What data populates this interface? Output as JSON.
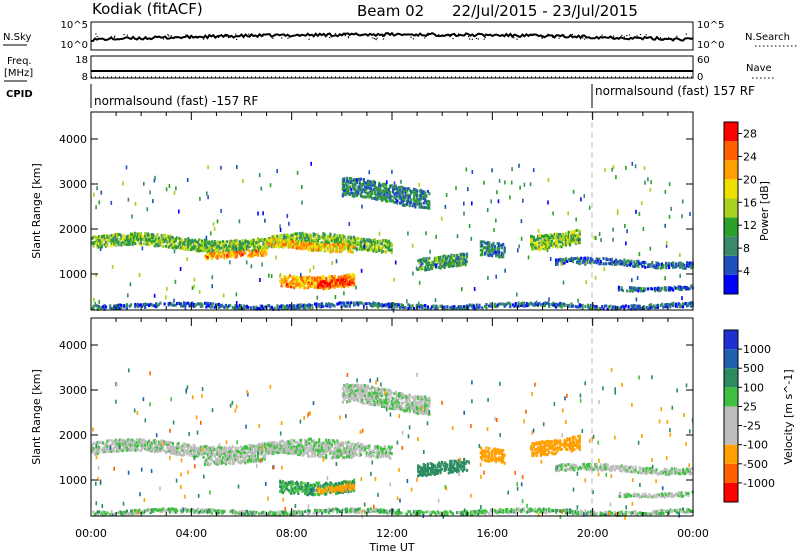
{
  "header": {
    "station": "Kodiak (fitACF)",
    "beam": "Beam 02",
    "date_range": "22/Jul/2015 - 23/Jul/2015"
  },
  "strip_labels": {
    "nsky": "N.Sky",
    "nsearch": "N.Search",
    "freq_top": "Freq.",
    "freq_unit": "[MHz]",
    "nave": "Nave",
    "cpid": "CPID",
    "nsky_ticks": [
      "10^5",
      "10^0"
    ],
    "nsearch_ticks": [
      "10^5",
      "10^0"
    ],
    "freq_ticks": [
      "18",
      "8"
    ],
    "nave_ticks": [
      "60",
      "0"
    ]
  },
  "cpid_segments": [
    {
      "label": "normalsound (fast) -157 RF",
      "start_hour": 0
    },
    {
      "label": "normalsound (fast) 157 RF",
      "start_hour": 20
    }
  ],
  "colors": {
    "power": [
      "#0000ff",
      "#2050c0",
      "#3a8a6a",
      "#2ca02c",
      "#a8d020",
      "#f0e000",
      "#ffa000",
      "#ff6000",
      "#ff0000"
    ],
    "velocity": [
      "#2030d0",
      "#2060b0",
      "#2c8c60",
      "#40c040",
      "#bdbdbd",
      "#bdbdbd",
      "#ffa000",
      "#ff6000",
      "#ff0000"
    ]
  },
  "chart_data": [
    {
      "type": "heatmap",
      "name": "power",
      "ylabel": "Slant Range [km]",
      "xlabel": "Time UT",
      "x_ticks": [
        "00:00",
        "04:00",
        "08:00",
        "12:00",
        "16:00",
        "20:00",
        "00:00"
      ],
      "x_range_hours": [
        0,
        24
      ],
      "ylim": [
        200,
        4600
      ],
      "y_ticks": [
        1000,
        2000,
        3000,
        4000
      ],
      "colorbar": {
        "label": "Power [dB]",
        "ticks": [
          4,
          8,
          12,
          16,
          20,
          24,
          28
        ],
        "range": [
          0,
          30
        ]
      },
      "echo_regions": [
        {
          "t0": 0.0,
          "t1": 12.0,
          "r_center": 1700,
          "r_width": 250,
          "power": 13
        },
        {
          "t0": 4.5,
          "t1": 7.0,
          "r_center": 1450,
          "r_width": 120,
          "power": 22
        },
        {
          "t0": 7.0,
          "t1": 10.5,
          "r_center": 1650,
          "r_width": 200,
          "power": 20
        },
        {
          "t0": 7.5,
          "t1": 10.5,
          "r_center": 900,
          "r_width": 250,
          "power": 22
        },
        {
          "t0": 9.0,
          "t1": 10.5,
          "r_center": 800,
          "r_width": 150,
          "power": 28
        },
        {
          "t0": 10.0,
          "t1": 13.5,
          "r_center": 2800,
          "r_width": 400,
          "power": 8
        },
        {
          "t0": 13.0,
          "t1": 15.0,
          "r_center": 1300,
          "r_width": 250,
          "power": 10
        },
        {
          "t0": 15.5,
          "t1": 16.5,
          "r_center": 1500,
          "r_width": 300,
          "power": 8
        },
        {
          "t0": 17.5,
          "t1": 19.5,
          "r_center": 1800,
          "r_width": 300,
          "power": 14
        },
        {
          "t0": 18.5,
          "t1": 24.0,
          "r_center": 1250,
          "r_width": 150,
          "power": 6
        },
        {
          "t0": 21.0,
          "t1": 24.0,
          "r_center": 700,
          "r_width": 100,
          "power": 6
        },
        {
          "t0": 0.0,
          "t1": 24.0,
          "r_center": 300,
          "r_width": 100,
          "power": 6
        }
      ]
    },
    {
      "type": "heatmap",
      "name": "velocity",
      "ylabel": "Slant Range [km]",
      "xlabel": "Time UT",
      "x_ticks": [
        "00:00",
        "04:00",
        "08:00",
        "12:00",
        "16:00",
        "20:00",
        "00:00"
      ],
      "x_range_hours": [
        0,
        24
      ],
      "ylim": [
        200,
        4600
      ],
      "y_ticks": [
        1000,
        2000,
        3000,
        4000
      ],
      "colorbar": {
        "label": "Velocity [m s^-1]",
        "ticks": [
          1000,
          500,
          100,
          25,
          -25,
          -100,
          -500,
          -1000
        ]
      },
      "echo_regions": [
        {
          "t0": 0.0,
          "t1": 12.0,
          "r_center": 1700,
          "r_width": 250,
          "velocity": 0
        },
        {
          "t0": 4.5,
          "t1": 7.0,
          "r_center": 1450,
          "r_width": 120,
          "velocity": 0
        },
        {
          "t0": 7.0,
          "t1": 10.5,
          "r_center": 1650,
          "r_width": 200,
          "velocity": 0
        },
        {
          "t0": 7.5,
          "t1": 10.5,
          "r_center": 900,
          "r_width": 250,
          "velocity": 100
        },
        {
          "t0": 9.0,
          "t1": 10.5,
          "r_center": 800,
          "r_width": 150,
          "velocity": -300
        },
        {
          "t0": 10.0,
          "t1": 13.5,
          "r_center": 2800,
          "r_width": 400,
          "velocity": 0
        },
        {
          "t0": 13.0,
          "t1": 15.0,
          "r_center": 1300,
          "r_width": 250,
          "velocity": 200
        },
        {
          "t0": 15.5,
          "t1": 16.5,
          "r_center": 1500,
          "r_width": 300,
          "velocity": -200
        },
        {
          "t0": 17.5,
          "t1": 19.5,
          "r_center": 1800,
          "r_width": 300,
          "velocity": -300
        },
        {
          "t0": 18.5,
          "t1": 24.0,
          "r_center": 1250,
          "r_width": 150,
          "velocity": 0
        },
        {
          "t0": 21.0,
          "t1": 24.0,
          "r_center": 700,
          "r_width": 100,
          "velocity": 0
        },
        {
          "t0": 0.0,
          "t1": 24.0,
          "r_center": 300,
          "r_width": 100,
          "velocity": 50
        }
      ]
    }
  ]
}
